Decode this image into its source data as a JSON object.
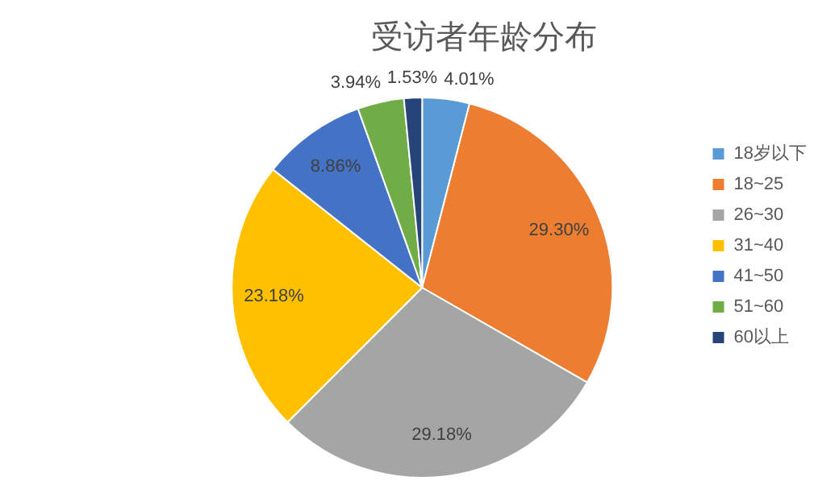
{
  "chart_data": {
    "type": "pie",
    "title": "受访者年龄分布",
    "categories": [
      "18岁以下",
      "18~25",
      "26~30",
      "31~40",
      "41~50",
      "51~60",
      "60以上"
    ],
    "values": [
      4.01,
      29.3,
      29.18,
      23.18,
      8.86,
      3.94,
      1.53
    ],
    "value_labels": [
      "4.01%",
      "29.30%",
      "29.18%",
      "23.18%",
      "8.86%",
      "3.94%",
      "1.53%"
    ],
    "colors": [
      "#5b9bd5",
      "#ed7d31",
      "#a5a5a5",
      "#ffc000",
      "#4472c4",
      "#70ad47",
      "#264478"
    ],
    "legend": "right"
  }
}
